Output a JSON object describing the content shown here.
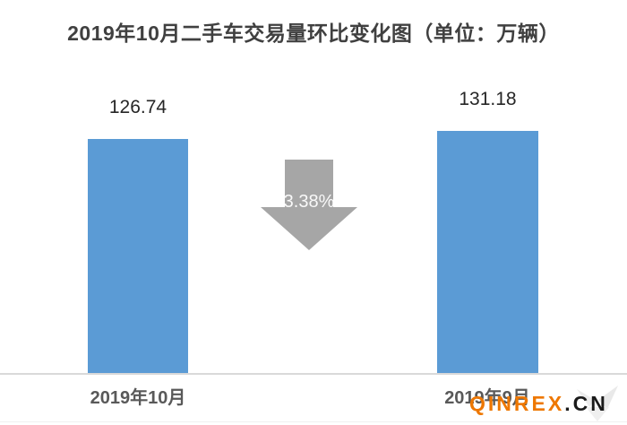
{
  "chart_data": {
    "type": "bar",
    "title": "2019年10月二手车交易量环比变化图（单位：万辆）",
    "unit": "万辆",
    "categories": [
      "2019年10月",
      "2019年9月"
    ],
    "values": [
      126.74,
      131.18
    ],
    "value_labels": [
      "126.74",
      "131.18"
    ],
    "annotation": {
      "text": "3.38%",
      "shape": "down-arrow",
      "meaning": "month-over-month decrease from 131.18 to 126.74"
    },
    "ylim": [
      0,
      140
    ],
    "grid": "off",
    "legend": "none",
    "colors": {
      "bar": "#5B9BD5",
      "arrow": "#A6A6A6",
      "axis_line": "#D9D9D9",
      "title_text": "#404040",
      "value_text": "#262626",
      "category_text": "#595959"
    }
  },
  "watermark": {
    "brand": "QINREX",
    "suffix": ".CN",
    "brand_color": "#EE7700",
    "suffix_color": "#1A1A1A"
  }
}
